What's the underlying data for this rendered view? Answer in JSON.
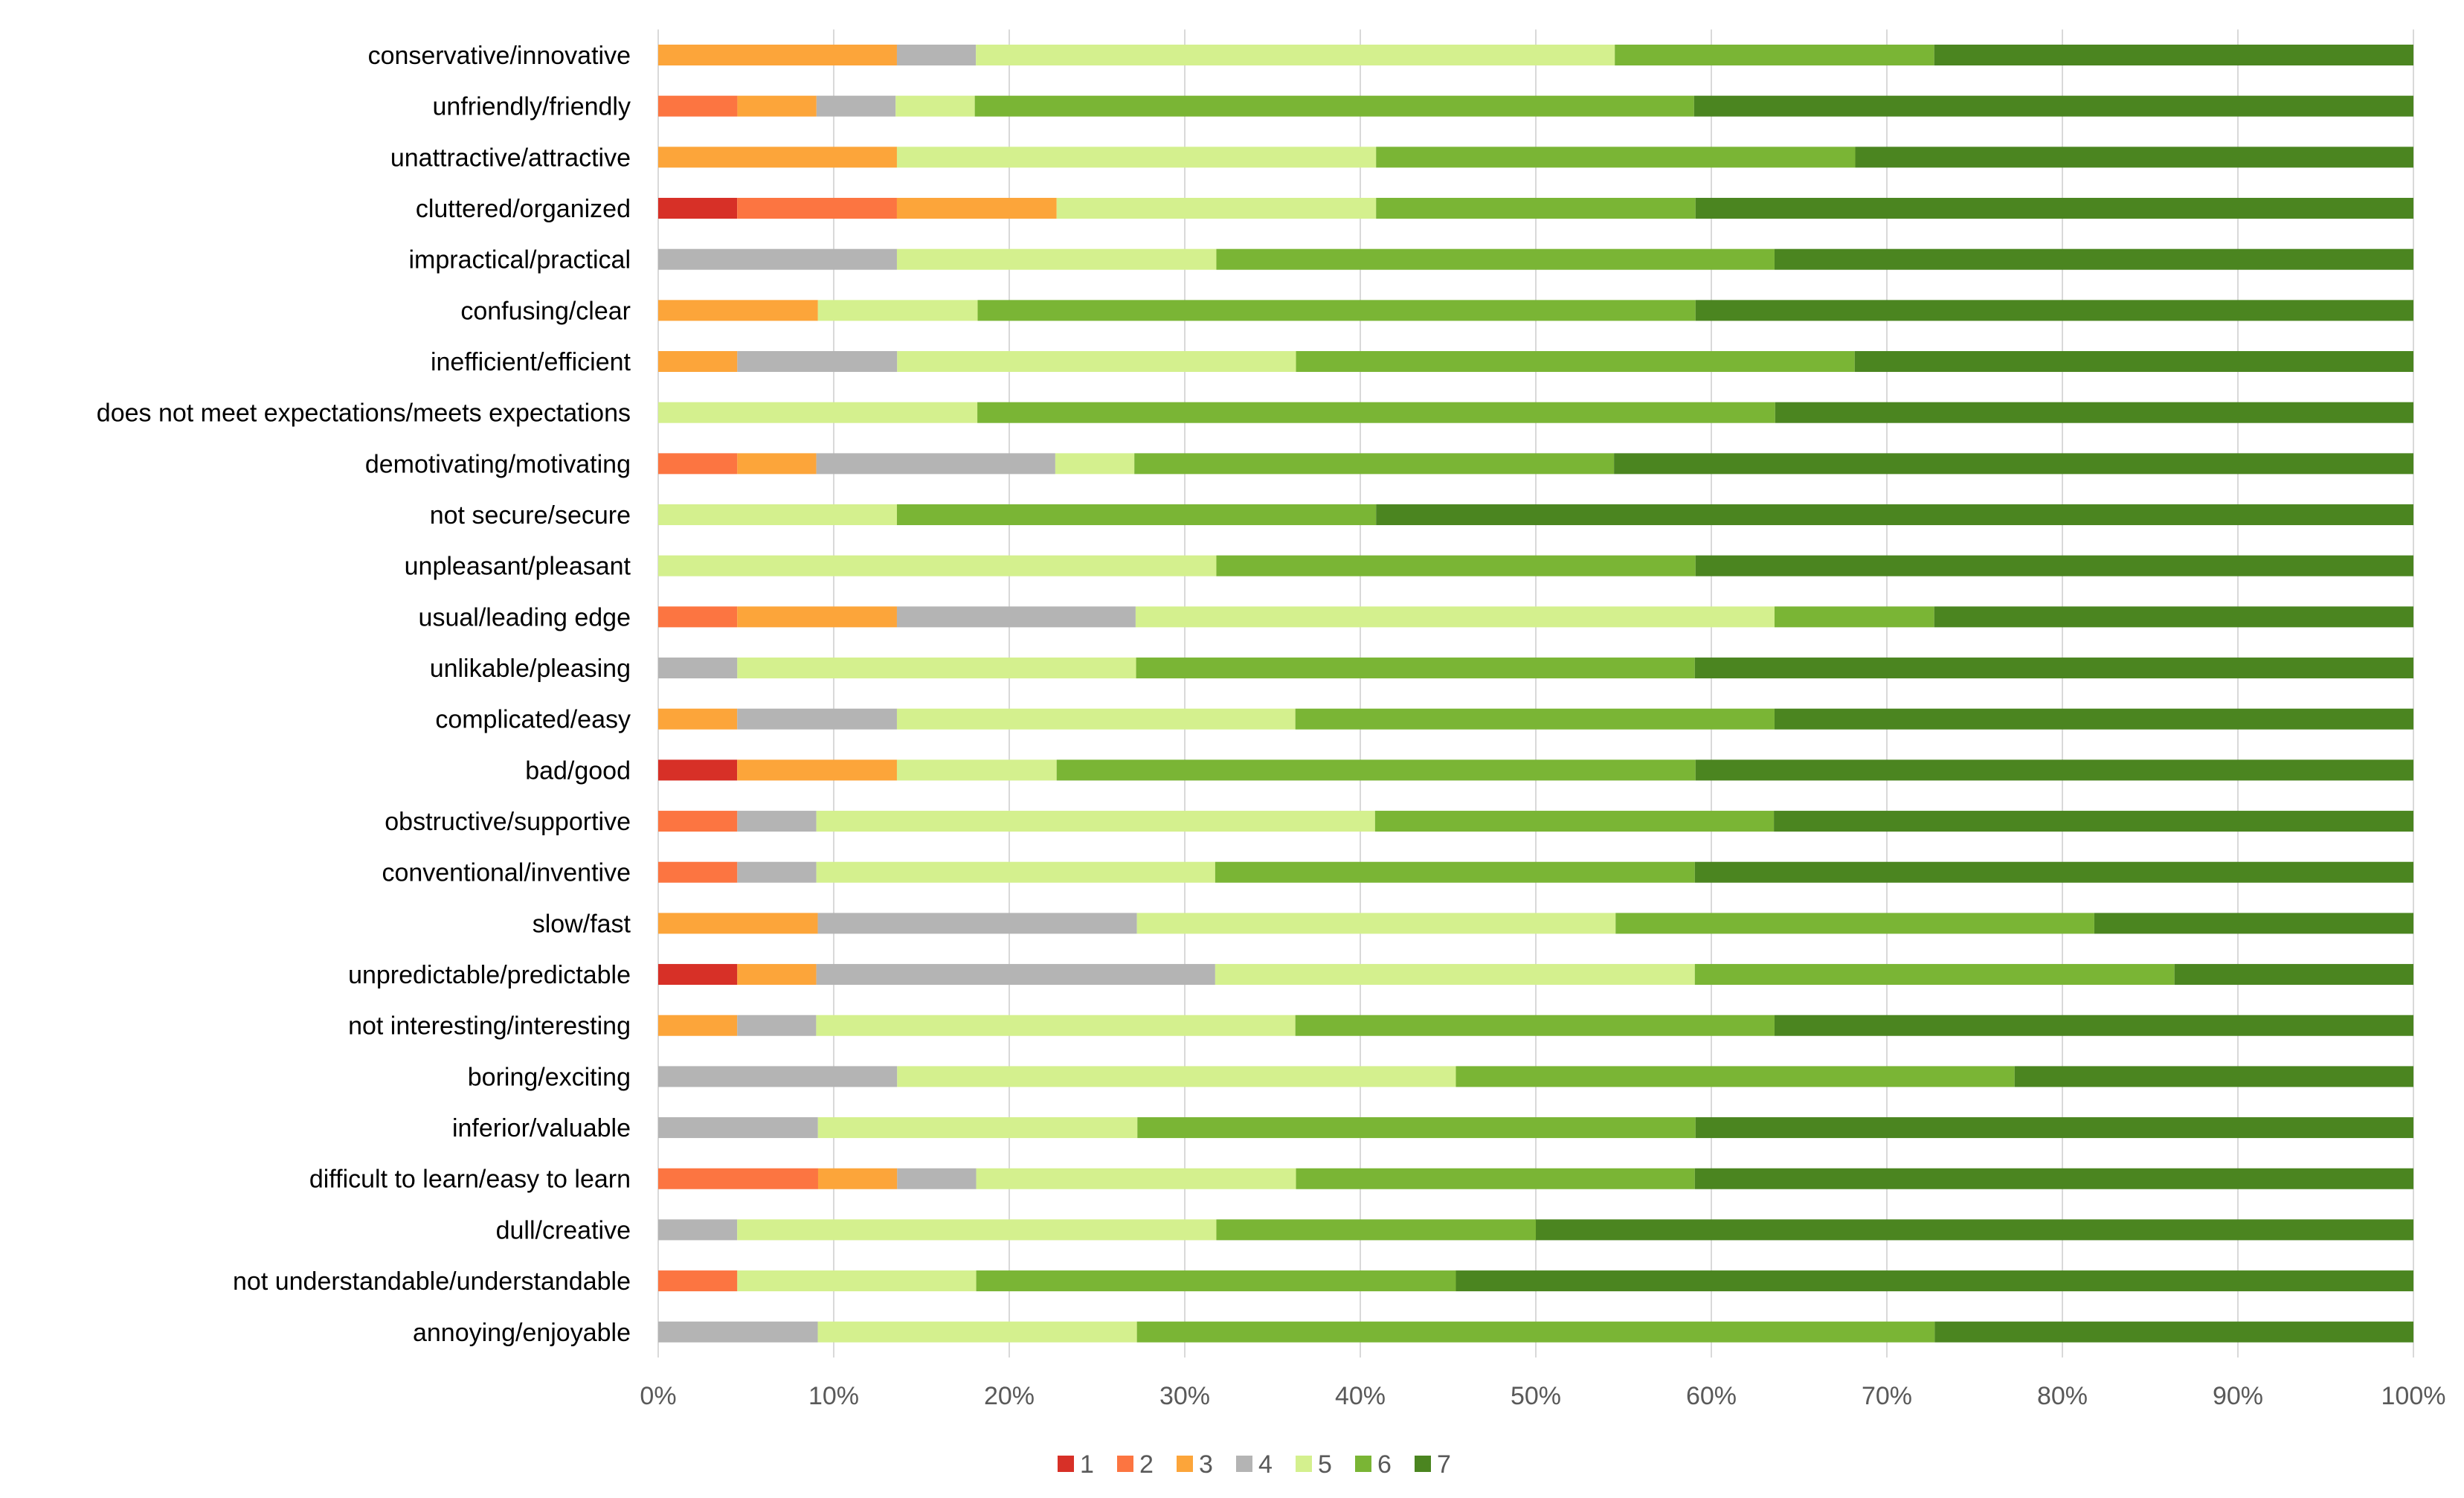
{
  "chart_data": {
    "type": "bar",
    "orientation": "horizontal",
    "stacked": "percent",
    "title": "",
    "xlabel": "",
    "ylabel": "",
    "xlim": [
      0,
      100
    ],
    "x_tick_labels": [
      "0%",
      "10%",
      "20%",
      "30%",
      "40%",
      "50%",
      "60%",
      "70%",
      "80%",
      "90%",
      "100%"
    ],
    "grid": "vertical",
    "legend_position": "bottom",
    "categories": [
      "conservative/innovative",
      "unfriendly/friendly",
      "unattractive/attractive",
      "cluttered/organized",
      "impractical/practical",
      "confusing/clear",
      "inefficient/efficient",
      "does not meet expectations/meets expectations",
      "demotivating/motivating",
      "not secure/secure",
      "unpleasant/pleasant",
      "usual/leading edge",
      "unlikable/pleasing",
      "complicated/easy",
      "bad/good",
      "obstructive/supportive",
      "conventional/inventive",
      "slow/fast",
      "unpredictable/predictable",
      "not interesting/interesting",
      "boring/exciting",
      "inferior/valuable",
      "difficult to learn/easy to learn",
      "dull/creative",
      "not understandable/understandable",
      "annoying/enjoyable"
    ],
    "series": [
      {
        "name": "1",
        "color": "#d73027",
        "values": [
          0,
          0,
          0,
          4.5,
          0,
          0,
          0,
          0,
          0,
          0,
          0,
          0,
          0,
          0,
          4.5,
          0,
          0,
          0,
          4.5,
          0,
          0,
          0,
          0,
          0,
          0,
          0
        ]
      },
      {
        "name": "2",
        "color": "#fc7541",
        "values": [
          0,
          4.5,
          0,
          9.1,
          0,
          0,
          0,
          0,
          4.5,
          0,
          0,
          4.5,
          0,
          0,
          0,
          4.5,
          4.5,
          0,
          0,
          0,
          0,
          0,
          9.1,
          0,
          4.5,
          0
        ]
      },
      {
        "name": "3",
        "color": "#fca53a",
        "values": [
          13.6,
          4.5,
          13.6,
          9.1,
          0,
          9.1,
          4.5,
          0,
          4.5,
          0,
          0,
          9.1,
          0,
          4.5,
          9.1,
          0,
          0,
          9.1,
          4.5,
          4.5,
          0,
          0,
          4.5,
          0,
          0,
          0
        ]
      },
      {
        "name": "4",
        "color": "#b4b4b4",
        "values": [
          4.5,
          4.5,
          0,
          0,
          13.6,
          0,
          9.1,
          0,
          13.6,
          0,
          0,
          13.6,
          4.5,
          9.1,
          0,
          4.5,
          4.5,
          18.2,
          22.7,
          4.5,
          13.6,
          9.1,
          4.5,
          4.5,
          0,
          9.1
        ]
      },
      {
        "name": "5",
        "color": "#d4f08e",
        "values": [
          36.4,
          4.5,
          27.3,
          18.2,
          18.2,
          9.1,
          22.7,
          18.2,
          4.5,
          13.6,
          31.8,
          36.4,
          22.7,
          22.7,
          9.1,
          31.8,
          22.7,
          27.3,
          27.3,
          27.3,
          31.8,
          18.2,
          18.2,
          27.3,
          13.6,
          18.2
        ]
      },
      {
        "name": "6",
        "color": "#7ab535",
        "values": [
          18.2,
          40.9,
          27.3,
          18.2,
          31.8,
          40.9,
          31.8,
          45.5,
          27.3,
          27.3,
          27.3,
          9.1,
          31.8,
          27.3,
          36.4,
          22.7,
          27.3,
          27.3,
          27.3,
          27.3,
          31.8,
          31.8,
          22.7,
          18.2,
          27.3,
          45.5
        ]
      },
      {
        "name": "7",
        "color": "#4b8520",
        "values": [
          27.3,
          40.9,
          31.8,
          40.9,
          36.4,
          40.9,
          31.8,
          36.4,
          45.5,
          59.1,
          40.9,
          27.3,
          40.9,
          36.4,
          40.9,
          36.4,
          40.9,
          18.2,
          13.6,
          36.4,
          22.7,
          40.9,
          40.9,
          50.0,
          54.5,
          27.3
        ]
      }
    ]
  }
}
